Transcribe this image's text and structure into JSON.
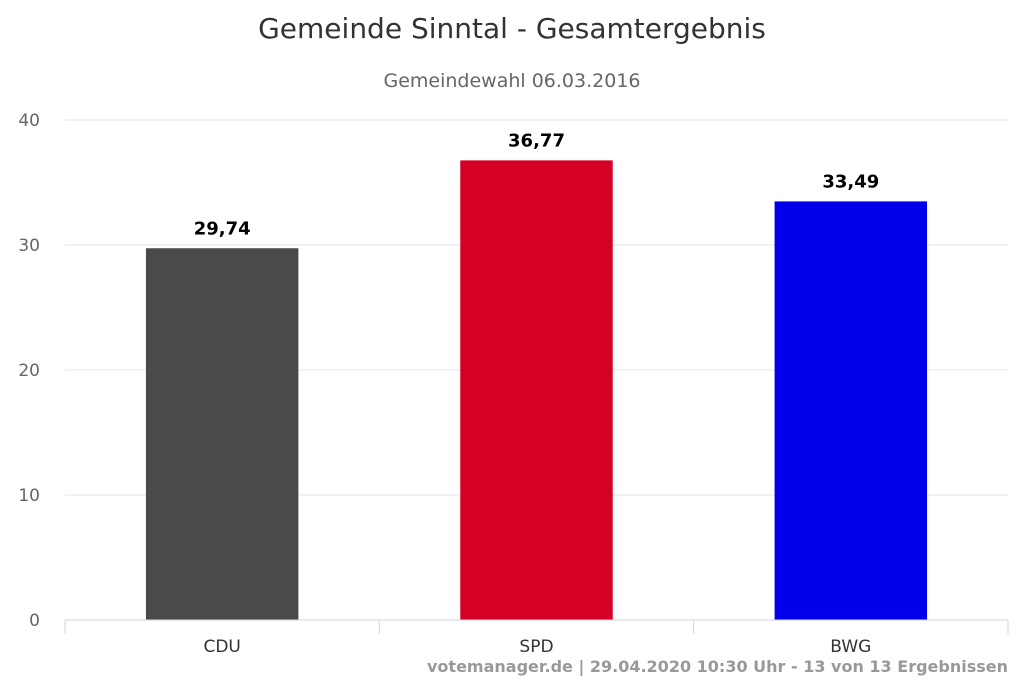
{
  "chart_data": {
    "type": "bar",
    "title": "Gemeinde Sinntal - Gesamtergebnis",
    "subtitle": "Gemeindewahl 06.03.2016",
    "categories": [
      "CDU",
      "SPD",
      "BWG"
    ],
    "values": [
      29.74,
      36.77,
      33.49
    ],
    "data_labels": [
      "29,74",
      "36,77",
      "33,49"
    ],
    "colors": [
      "#4a4a4a",
      "#d50026",
      "#0000ea"
    ],
    "ylim": [
      0,
      40
    ],
    "yticks": [
      "0",
      "10",
      "20",
      "30",
      "40"
    ],
    "grid": true,
    "legend": false,
    "xlabel": "",
    "ylabel": ""
  },
  "credits": "votemanager.de | 29.04.2020 10:30 Uhr - 13 von 13 Ergebnissen"
}
